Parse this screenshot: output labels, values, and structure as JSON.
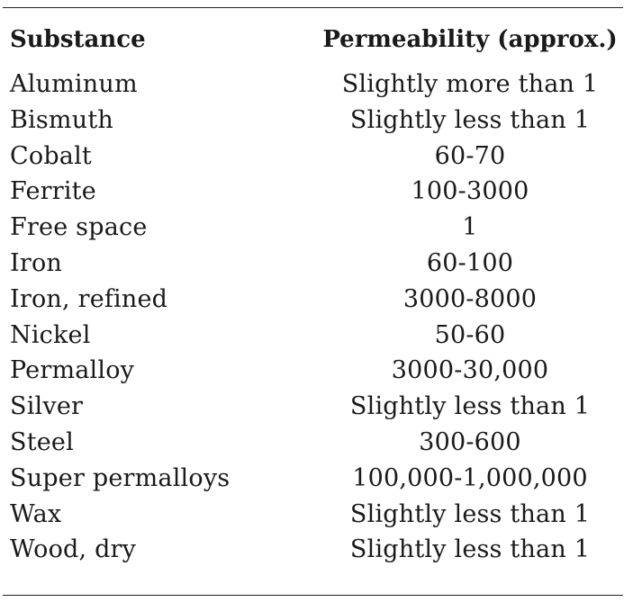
{
  "table": {
    "headers": [
      "Substance",
      "Permeability (approx.)"
    ],
    "rows": [
      {
        "substance": "Aluminum",
        "permeability": "Slightly more than 1"
      },
      {
        "substance": "Bismuth",
        "permeability": "Slightly less than 1"
      },
      {
        "substance": "Cobalt",
        "permeability": "60-70"
      },
      {
        "substance": "Ferrite",
        "permeability": "100-3000"
      },
      {
        "substance": "Free space",
        "permeability": "1"
      },
      {
        "substance": "Iron",
        "permeability": "60-100"
      },
      {
        "substance": "Iron, refined",
        "permeability": "3000-8000"
      },
      {
        "substance": "Nickel",
        "permeability": "50-60"
      },
      {
        "substance": "Permalloy",
        "permeability": "3000-30,000"
      },
      {
        "substance": "Silver",
        "permeability": "Slightly less than 1"
      },
      {
        "substance": "Steel",
        "permeability": "300-600"
      },
      {
        "substance": "Super permalloys",
        "permeability": "100,000-1,000,000"
      },
      {
        "substance": "Wax",
        "permeability": "Slightly less than 1"
      },
      {
        "substance": "Wood, dry",
        "permeability": "Slightly less than 1"
      }
    ]
  }
}
